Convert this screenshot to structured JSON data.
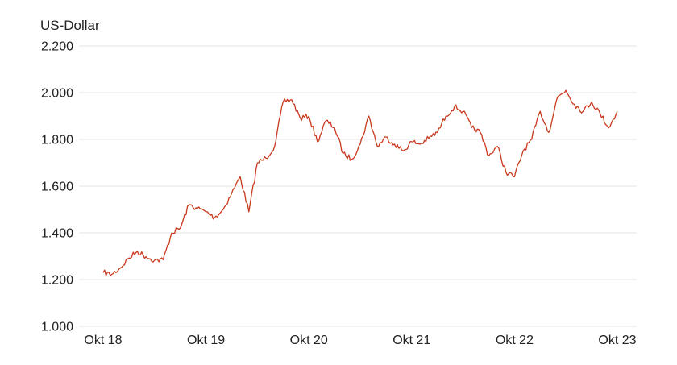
{
  "chart_data": {
    "type": "line",
    "unit_label": "US-Dollar",
    "x_ticks": [
      "Okt 18",
      "Okt 19",
      "Okt 20",
      "Okt 21",
      "Okt 22",
      "Okt 23"
    ],
    "y_ticks": [
      "1.000",
      "1.200",
      "1.400",
      "1.600",
      "1.800",
      "2.000",
      "2.200"
    ],
    "ylim": [
      1000,
      2200
    ],
    "xlim": [
      "2018-10",
      "2023-10"
    ],
    "grid": "horizontal",
    "legend": "none",
    "colors": {
      "line": "#c8391d",
      "grid": "#e3e3e3",
      "text": "#222222"
    },
    "series": [
      {
        "points": [
          [
            "2018-10",
            1230
          ],
          [
            "2018-11",
            1222
          ],
          [
            "2018-12",
            1250
          ],
          [
            "2019-01",
            1292
          ],
          [
            "2019-02",
            1320
          ],
          [
            "2019-03",
            1298
          ],
          [
            "2019-04",
            1283
          ],
          [
            "2019-05",
            1285
          ],
          [
            "2019-06",
            1400
          ],
          [
            "2019-07",
            1420
          ],
          [
            "2019-08",
            1520
          ],
          [
            "2019-09",
            1505
          ],
          [
            "2019-10",
            1490
          ],
          [
            "2019-11",
            1465
          ],
          [
            "2019-12",
            1500
          ],
          [
            "2020-01",
            1570
          ],
          [
            "2020-02",
            1640
          ],
          [
            "2020-03",
            1490
          ],
          [
            "2020-04",
            1700
          ],
          [
            "2020-05",
            1720
          ],
          [
            "2020-06",
            1770
          ],
          [
            "2020-07",
            1960
          ],
          [
            "2020-08",
            1970
          ],
          [
            "2020-09",
            1890
          ],
          [
            "2020-10",
            1900
          ],
          [
            "2020-11",
            1790
          ],
          [
            "2020-12",
            1880
          ],
          [
            "2021-01",
            1850
          ],
          [
            "2021-02",
            1740
          ],
          [
            "2021-03",
            1715
          ],
          [
            "2021-04",
            1780
          ],
          [
            "2021-05",
            1900
          ],
          [
            "2021-06",
            1770
          ],
          [
            "2021-07",
            1810
          ],
          [
            "2021-08",
            1780
          ],
          [
            "2021-09",
            1750
          ],
          [
            "2021-10",
            1790
          ],
          [
            "2021-11",
            1780
          ],
          [
            "2021-12",
            1805
          ],
          [
            "2022-01",
            1830
          ],
          [
            "2022-02",
            1900
          ],
          [
            "2022-03",
            1940
          ],
          [
            "2022-04",
            1920
          ],
          [
            "2022-05",
            1850
          ],
          [
            "2022-06",
            1830
          ],
          [
            "2022-07",
            1730
          ],
          [
            "2022-08",
            1770
          ],
          [
            "2022-09",
            1660
          ],
          [
            "2022-10",
            1640
          ],
          [
            "2022-11",
            1750
          ],
          [
            "2022-12",
            1800
          ],
          [
            "2023-01",
            1920
          ],
          [
            "2023-02",
            1830
          ],
          [
            "2023-03",
            1980
          ],
          [
            "2023-04",
            2010
          ],
          [
            "2023-05",
            1950
          ],
          [
            "2023-06",
            1920
          ],
          [
            "2023-07",
            1960
          ],
          [
            "2023-08",
            1910
          ],
          [
            "2023-09",
            1850
          ],
          [
            "2023-10",
            1920
          ]
        ]
      }
    ]
  }
}
